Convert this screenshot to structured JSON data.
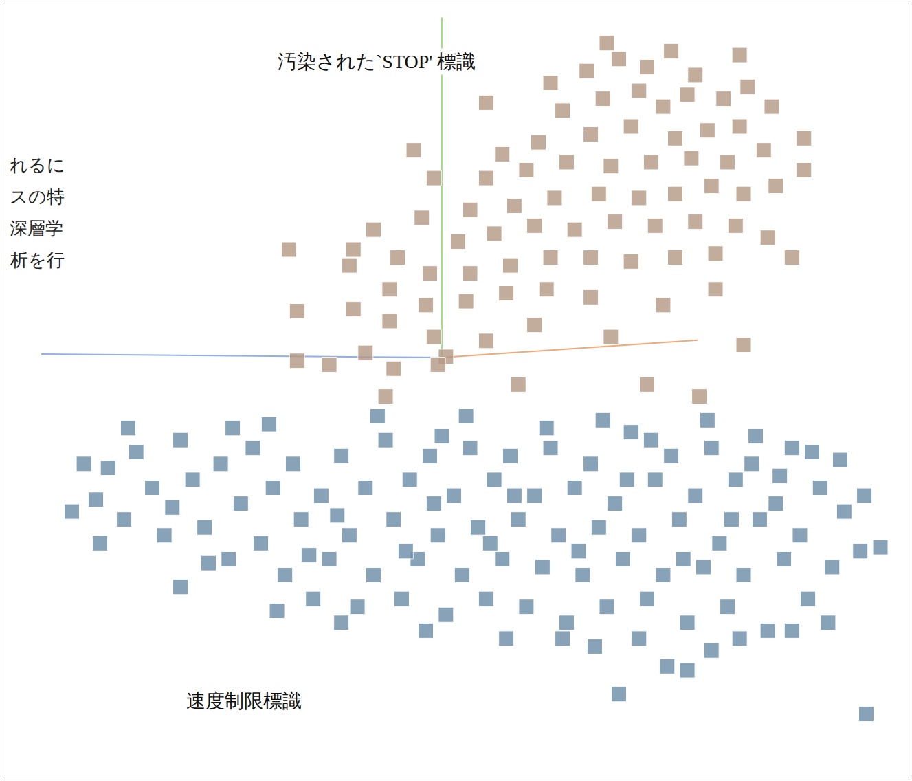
{
  "chart_data": {
    "type": "scatter",
    "xlim": [
      -11,
      11.5
    ],
    "ylim": [
      -10.5,
      9
    ],
    "grid": false,
    "tick_labels": false,
    "marker": "square",
    "side_text": [
      "れるに",
      "スの特",
      "深層学",
      "析を行"
    ],
    "series": [
      {
        "name": "汚染された`STOP' 標識",
        "color": "#b59a86",
        "x": [
          7.3,
          2.6,
          3.5,
          4.3,
          5.0,
          5.6,
          6.2,
          4.8,
          3.9,
          2.9,
          5.4,
          6.0,
          6.9,
          7.5,
          8.1,
          7.3,
          6.5,
          5.7,
          4.6,
          3.6,
          2.3,
          1.4,
          1.0,
          2.0,
          3.0,
          4.1,
          5.1,
          6.1,
          7.0,
          7.9,
          8.9,
          8.9,
          8.2,
          7.4,
          6.6,
          5.7,
          4.8,
          3.8,
          2.7,
          1.7,
          0.6,
          -0.3,
          -0.6,
          0.3,
          1.2,
          2.2,
          3.2,
          4.2,
          5.2,
          6.2,
          7.2,
          8.0,
          6.7,
          5.7,
          4.6,
          3.6,
          2.6,
          1.6,
          0.6,
          -0.4,
          -1.2,
          -1.8,
          -2.4,
          -3.9,
          -2.3,
          -1.4,
          -0.5,
          0.5,
          1.5,
          2.5,
          3.6,
          5.4,
          6.7,
          -3.7,
          -2.3,
          -1.4,
          -0.3,
          0.0,
          1.0,
          2.2,
          4.1,
          7.4,
          -3.7,
          -2.9,
          -2.0,
          -1.3,
          -0.2,
          1.8,
          5.0,
          -1.5,
          6.3,
          8.6,
          4.0,
          1.0,
          -0.8
        ],
        "y": [
          7.7,
          7.0,
          7.3,
          7.6,
          7.4,
          7.8,
          7.2,
          6.8,
          6.6,
          6.3,
          6.4,
          6.7,
          6.6,
          6.9,
          6.4,
          5.9,
          5.8,
          5.6,
          5.9,
          5.7,
          5.5,
          5.2,
          4.6,
          4.8,
          5.0,
          4.9,
          5.0,
          5.1,
          5.0,
          5.3,
          5.6,
          4.8,
          4.4,
          4.2,
          4.4,
          4.2,
          4.1,
          4.2,
          4.1,
          3.9,
          3.8,
          4.6,
          3.6,
          3.0,
          3.2,
          3.4,
          3.3,
          3.5,
          3.4,
          3.5,
          3.4,
          3.1,
          2.7,
          2.6,
          2.5,
          2.6,
          2.6,
          2.4,
          2.2,
          2.2,
          2.6,
          3.3,
          2.4,
          2.8,
          2.8,
          1.8,
          1.4,
          1.5,
          1.7,
          1.8,
          1.6,
          1.4,
          1.8,
          1.25,
          1.3,
          1.0,
          0.6,
          0.1,
          0.5,
          0.9,
          0.6,
          0.4,
          0.0,
          -0.1,
          0.2,
          -0.2,
          -0.1,
          -0.6,
          -0.6,
          -0.9,
          -0.9,
          2.6,
          8.0,
          6.5,
          5.3
        ]
      },
      {
        "name": "速度制限標識",
        "color": "#6f8ea8",
        "x": [
          -9.3,
          -8.7,
          -8.4,
          -8.0,
          -7.7,
          -7.3,
          -7.0,
          -6.6,
          -6.3,
          -6.0,
          -5.6,
          -5.4,
          -5.1,
          -4.8,
          -4.6,
          -4.3,
          -4.0,
          -3.8,
          -3.6,
          -3.3,
          -3.1,
          -2.9,
          -2.6,
          -2.4,
          -2.2,
          -2.0,
          -1.8,
          -1.5,
          -1.3,
          -1.1,
          -0.9,
          -0.7,
          -0.4,
          -0.2,
          0.0,
          0.2,
          0.4,
          0.6,
          0.8,
          1.0,
          1.2,
          1.4,
          1.6,
          1.8,
          2.0,
          2.2,
          2.4,
          2.6,
          2.8,
          3.0,
          3.2,
          3.4,
          3.6,
          3.8,
          4.0,
          4.2,
          4.4,
          4.6,
          4.8,
          5.0,
          5.2,
          5.4,
          5.6,
          5.8,
          6.0,
          6.2,
          6.4,
          6.6,
          6.8,
          7.0,
          7.2,
          7.4,
          7.6,
          7.8,
          8.0,
          8.2,
          8.4,
          8.6,
          8.8,
          9.0,
          9.3,
          9.6,
          9.9,
          10.3,
          10.8,
          5.5,
          6.6,
          4.3,
          3.7,
          7.3,
          10.45,
          -9.0,
          -7.9,
          -6.8,
          -5.9,
          -5.3,
          -4.4,
          -3.4,
          -2.7,
          -1.7,
          -1.0,
          -0.3,
          0.5,
          1.1,
          1.7,
          2.5,
          3.3,
          3.9,
          4.5,
          5.1,
          5.9,
          6.5,
          7.1,
          7.7,
          8.3,
          9.1,
          9.8,
          10.4,
          2.9,
          1.5,
          -0.5,
          -2.6,
          -4.2,
          -8.6,
          -6.6,
          4.8,
          6.0,
          8.6,
          9.5,
          -0.1
        ],
        "y": [
          -3.8,
          -3.5,
          -2.7,
          -4.0,
          -2.3,
          -3.2,
          -4.4,
          -2.0,
          -3.0,
          -4.2,
          -2.6,
          -5.0,
          -3.6,
          -2.2,
          -4.6,
          -3.2,
          -5.4,
          -2.6,
          -4.0,
          -6.0,
          -3.4,
          -5.0,
          -2.4,
          -4.4,
          -6.2,
          -3.2,
          -5.4,
          -2.0,
          -4.0,
          -6.0,
          -3.0,
          -5.0,
          -2.4,
          -4.4,
          -6.4,
          -3.4,
          -5.4,
          -2.2,
          -4.2,
          -6.0,
          -3.0,
          -5.0,
          -2.4,
          -4.0,
          -6.2,
          -3.4,
          -5.2,
          -2.2,
          -4.4,
          -6.6,
          -3.2,
          -5.4,
          -2.6,
          -4.2,
          -6.2,
          -3.6,
          -5.0,
          -1.8,
          -4.4,
          -6.0,
          -3.0,
          -5.4,
          -2.4,
          -4.0,
          -6.6,
          -3.4,
          -5.2,
          -2.2,
          -4.6,
          -6.2,
          -3.0,
          -5.4,
          -2.6,
          -4.0,
          -6.8,
          -3.6,
          -5.0,
          -2.2,
          -4.4,
          -6.0,
          -3.2,
          -5.2,
          -3.8,
          -4.8,
          -4.7,
          -7.7,
          -7.3,
          -8.4,
          -7.2,
          -7.0,
          -8.9,
          -2.6,
          -1.7,
          -3.7,
          -5.1,
          -1.7,
          -1.6,
          -4.9,
          -3.9,
          -1.4,
          -4.8,
          -3.6,
          -1.4,
          -4.6,
          -3.4,
          -1.7,
          -4.8,
          -1.5,
          -3.0,
          -2.0,
          -5.0,
          -1.5,
          -4.0,
          -1.9,
          -2.9,
          -2.3,
          -2.5,
          -3.4,
          -7.0,
          -7.0,
          -6.8,
          -6.6,
          -6.3,
          -4.6,
          -5.7,
          -7.0,
          -7.8,
          -6.8,
          -6.6,
          -1.9
        ]
      }
    ]
  }
}
